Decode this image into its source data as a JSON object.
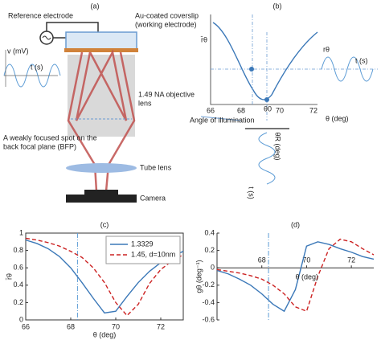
{
  "diagram": {
    "panel_a": "(a)",
    "ref_electrode": "Reference electrode",
    "coverslip_1": "Au-coated coverslip",
    "coverslip_2": "(working electrode)",
    "v_label": "v (mV)",
    "t_label": "t (s)",
    "objective_1": "1.49 NA objective",
    "objective_2": "lens",
    "spot_1": "A weakly focused spot on the",
    "spot_2": "back focal plane (BFP)",
    "tube_lens": "Tube lens",
    "camera": "Camera",
    "panel_b": "(b)",
    "b_ylabel": "r̄θ",
    "b_ticks": [
      "66",
      "68",
      "70",
      "72"
    ],
    "b_xlabel": "θ (deg)",
    "theta0": "θ0",
    "angle_illum": "Angle of illumination",
    "r_label": "rθ",
    "t_right": "t (s)",
    "theta_r": "θR (deg)",
    "t_bottom": "t (s)"
  },
  "chart_data": [
    {
      "type": "line",
      "title": "(c)",
      "xlabel": "θ (deg)",
      "ylabel": "r̄θ",
      "axis_style": "box",
      "legend": "upper right",
      "x": [
        66,
        66.5,
        67,
        67.5,
        68,
        68.5,
        69,
        69.5,
        70,
        70.5,
        71,
        71.5,
        72,
        72.5,
        73
      ],
      "series": [
        {
          "name": "1.3329",
          "color": "#3b78b8",
          "dash": false,
          "values": [
            0.92,
            0.88,
            0.82,
            0.73,
            0.6,
            0.43,
            0.25,
            0.08,
            0.1,
            0.27,
            0.43,
            0.56,
            0.66,
            0.73,
            0.79
          ]
        },
        {
          "name": "1.45, d=10nm",
          "color": "#cc2222",
          "dash": true,
          "values": [
            0.94,
            0.92,
            0.89,
            0.85,
            0.79,
            0.72,
            0.6,
            0.43,
            0.2,
            0.05,
            0.18,
            0.42,
            0.58,
            0.68,
            0.75
          ]
        }
      ],
      "vline": 68.3,
      "xlim": [
        66,
        73
      ],
      "xticks": [
        66,
        68,
        70,
        72
      ],
      "ylim": [
        0,
        1
      ],
      "yticks": [
        0,
        0.2,
        0.4,
        0.6,
        0.8,
        1
      ]
    },
    {
      "type": "line",
      "title": "(d)",
      "xlabel": "θ (deg)",
      "ylabel": "gθ (deg⁻¹)",
      "axis_style": "cross",
      "x": [
        66,
        66.5,
        67,
        67.5,
        68,
        68.5,
        69,
        69.5,
        70,
        70.5,
        71,
        71.5,
        72,
        72.5,
        73
      ],
      "series": [
        {
          "name": "1.3329",
          "color": "#3b78b8",
          "dash": false,
          "values": [
            -0.03,
            -0.07,
            -0.13,
            -0.2,
            -0.3,
            -0.42,
            -0.5,
            -0.25,
            0.25,
            0.3,
            0.27,
            0.22,
            0.18,
            0.13,
            0.1
          ]
        },
        {
          "name": "1.45, d=10nm",
          "color": "#cc2222",
          "dash": true,
          "values": [
            -0.02,
            -0.04,
            -0.06,
            -0.09,
            -0.13,
            -0.2,
            -0.3,
            -0.45,
            -0.5,
            -0.1,
            0.22,
            0.33,
            0.3,
            0.22,
            0.15
          ]
        }
      ],
      "vline": 68.3,
      "xlim": [
        66,
        73
      ],
      "xticks": [
        68,
        70,
        72
      ],
      "ylim": [
        -0.6,
        0.4
      ],
      "yticks": [
        -0.6,
        -0.4,
        -0.2,
        0,
        0.2,
        0.4
      ]
    }
  ]
}
